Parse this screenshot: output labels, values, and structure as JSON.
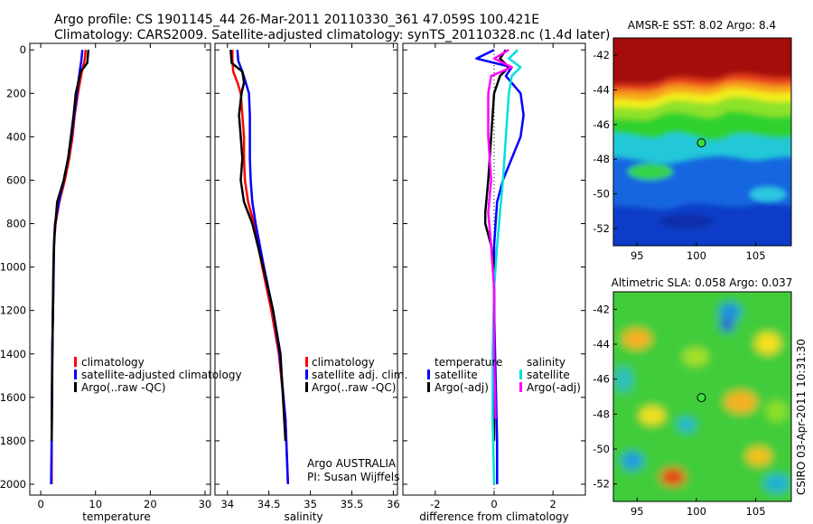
{
  "header": {
    "line1": "Argo profile: CS 1901145_44 26-Mar-2011 20110330_361 47.059S 100.421E",
    "line2": "Climatology: CARS2009. Satellite-adjusted climatology: synTS_20110328.nc (1.4d later)"
  },
  "colors": {
    "climatology": "#ff0000",
    "satellite": "#0000ff",
    "argo": "#000000",
    "satellite_salinity": "#00e0e0",
    "argo_adj_salinity": "#ff00ff"
  },
  "chart_data": [
    {
      "type": "line",
      "id": "temperature",
      "xlabel": "temperature",
      "ylabel": "",
      "xlim": [
        -2,
        31
      ],
      "ylim": [
        2050,
        -30
      ],
      "xticks": [
        0,
        10,
        20,
        30
      ],
      "yticks": [
        0,
        200,
        400,
        600,
        800,
        1000,
        1200,
        1400,
        1600,
        1800,
        2000
      ],
      "legend": [
        "climatology",
        "satellite-adjusted climatology",
        "Argo(..raw -QC)"
      ],
      "series": [
        {
          "name": "climatology",
          "color": "#ff0000",
          "x": [
            8.2,
            8.0,
            7.5,
            6.8,
            6.2,
            5.8,
            5.2,
            4.4,
            3.4,
            2.7,
            2.4,
            2.3,
            2.1,
            2.0,
            2.0
          ],
          "y": [
            0,
            50,
            100,
            200,
            300,
            400,
            500,
            600,
            700,
            800,
            900,
            1100,
            1400,
            1800,
            2000
          ]
        },
        {
          "name": "satellite-adjusted climatology",
          "color": "#0000ff",
          "x": [
            7.6,
            7.4,
            7.1,
            6.6,
            6.1,
            5.6,
            5.0,
            4.2,
            3.3,
            2.6,
            2.4,
            2.3,
            2.1,
            2.0,
            1.9
          ],
          "y": [
            0,
            50,
            100,
            200,
            300,
            400,
            500,
            600,
            700,
            800,
            900,
            1100,
            1400,
            1800,
            2000
          ]
        },
        {
          "name": "Argo(..raw -QC)",
          "color": "#000000",
          "x": [
            8.7,
            8.5,
            7.3,
            6.4,
            6.0,
            5.5,
            5.0,
            4.2,
            3.0,
            2.5,
            2.3,
            2.2,
            2.1,
            2.0
          ],
          "y": [
            0,
            60,
            100,
            200,
            300,
            400,
            500,
            600,
            700,
            850,
            1000,
            1200,
            1500,
            1800
          ]
        }
      ]
    },
    {
      "type": "line",
      "id": "salinity",
      "xlabel": "salinity",
      "ylabel": "",
      "xlim": [
        33.85,
        36.05
      ],
      "ylim": [
        2050,
        -30
      ],
      "xticks": [
        34,
        34.5,
        35,
        35.5,
        36
      ],
      "legend": [
        "climatology",
        "satellite adj. clim.",
        "Argo(..raw -QC)"
      ],
      "annotations": [
        "Argo AUSTRALIA",
        "PI: Susan Wijffels"
      ],
      "series": [
        {
          "name": "climatology",
          "color": "#ff0000",
          "x": [
            34.06,
            34.06,
            34.07,
            34.12,
            34.16,
            34.18,
            34.2,
            34.2,
            34.21,
            34.25,
            34.32,
            34.42,
            34.53,
            34.62,
            34.7,
            34.73
          ],
          "y": [
            0,
            50,
            100,
            150,
            200,
            300,
            400,
            500,
            600,
            700,
            800,
            1000,
            1200,
            1400,
            1700,
            2000
          ]
        },
        {
          "name": "satellite adj. clim.",
          "color": "#0000ff",
          "x": [
            34.12,
            34.13,
            34.18,
            34.22,
            34.26,
            34.27,
            34.27,
            34.27,
            34.28,
            34.3,
            34.34,
            34.44,
            34.55,
            34.63,
            34.7,
            34.73
          ],
          "y": [
            0,
            50,
            100,
            150,
            200,
            300,
            400,
            500,
            600,
            700,
            800,
            1000,
            1200,
            1400,
            1700,
            2000
          ]
        },
        {
          "name": "Argo(..raw -QC)",
          "color": "#000000",
          "x": [
            34.04,
            34.05,
            34.18,
            34.2,
            34.17,
            34.14,
            34.16,
            34.18,
            34.16,
            34.2,
            34.3,
            34.43,
            34.55,
            34.64,
            34.7
          ],
          "y": [
            0,
            60,
            100,
            150,
            200,
            300,
            400,
            500,
            600,
            700,
            800,
            1000,
            1200,
            1400,
            1800
          ]
        }
      ]
    },
    {
      "type": "line",
      "id": "difference",
      "xlabel": "difference from climatology",
      "ylabel": "",
      "xlim": [
        -3.1,
        3.1
      ],
      "ylim": [
        2050,
        -30
      ],
      "xticks": [
        -2,
        0,
        2
      ],
      "legend_titles": [
        "temperature",
        "salinity"
      ],
      "legend": [
        "satellite",
        "Argo(-adj)",
        "satellite",
        "Argo(-adj)"
      ],
      "series": [
        {
          "name": "temperature satellite",
          "color": "#0000ff",
          "x": [
            0.0,
            -0.6,
            0.6,
            0.4,
            0.9,
            1.0,
            0.9,
            0.6,
            0.3,
            0.1,
            0.05,
            0.0,
            0.0,
            0.05,
            0.1,
            0.1
          ],
          "y": [
            0,
            40,
            80,
            120,
            200,
            300,
            400,
            500,
            600,
            700,
            800,
            900,
            1200,
            1500,
            1800,
            2000
          ]
        },
        {
          "name": "temperature Argo(-adj)",
          "color": "#000000",
          "x": [
            0.4,
            0.2,
            0.5,
            0.2,
            0.0,
            -0.1,
            -0.2,
            -0.3,
            -0.3,
            -0.1,
            0.0,
            0.0,
            0.0
          ],
          "y": [
            0,
            40,
            80,
            120,
            200,
            400,
            600,
            750,
            800,
            900,
            1000,
            1400,
            1800
          ]
        },
        {
          "name": "salinity satellite",
          "color": "#00e0e0",
          "x": [
            0.8,
            0.5,
            0.9,
            0.6,
            0.5,
            0.4,
            0.3,
            0.2,
            0.1,
            0.0,
            -0.05,
            -0.05,
            0.0
          ],
          "y": [
            0,
            40,
            80,
            120,
            200,
            400,
            600,
            750,
            900,
            1100,
            1400,
            1700,
            2000
          ]
        },
        {
          "name": "salinity Argo(-adj)",
          "color": "#ff00ff",
          "x": [
            0.5,
            0.0,
            0.6,
            -0.1,
            -0.2,
            -0.2,
            -0.1,
            -0.2,
            -0.1,
            0.0,
            0.0,
            0.05
          ],
          "y": [
            0,
            40,
            80,
            120,
            200,
            400,
            600,
            750,
            900,
            1100,
            1400,
            1700
          ]
        }
      ]
    },
    {
      "type": "heatmap",
      "id": "sst",
      "title": "AMSR-E SST: 8.02 Argo: 8.4",
      "xticks": [
        95,
        100,
        105
      ],
      "yticks": [
        -42,
        -44,
        -46,
        -48,
        -50,
        -52
      ],
      "xlim": [
        93,
        108
      ],
      "ylim": [
        -53,
        -41
      ],
      "marker": {
        "lon": 100.421,
        "lat": -47.059
      }
    },
    {
      "type": "heatmap",
      "id": "sla",
      "title": "Altimetric SLA: 0.058 Argo: 0.037",
      "xticks": [
        95,
        100,
        105
      ],
      "yticks": [
        -42,
        -44,
        -46,
        -48,
        -50,
        -52
      ],
      "xlim": [
        93,
        108
      ],
      "ylim": [
        -53,
        -41
      ],
      "marker": {
        "lon": 100.421,
        "lat": -47.059
      }
    }
  ],
  "side_label": "CSIRO 03-Apr-2011 10:31:30"
}
